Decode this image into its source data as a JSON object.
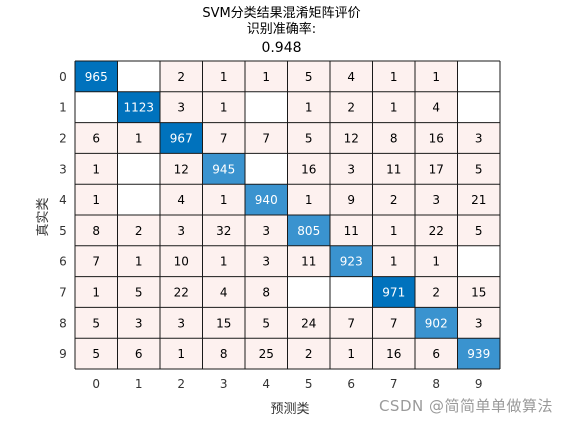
{
  "chart_data": {
    "type": "heatmap",
    "title_lines": [
      "SVM分类结果混淆矩阵评价",
      "识别准确率:",
      "0.948"
    ],
    "xlabel": "预测类",
    "ylabel": "真实类",
    "x_categories": [
      "0",
      "1",
      "2",
      "3",
      "4",
      "5",
      "6",
      "7",
      "8",
      "9"
    ],
    "y_categories": [
      "0",
      "1",
      "2",
      "3",
      "4",
      "5",
      "6",
      "7",
      "8",
      "9"
    ],
    "matrix": [
      [
        965,
        null,
        2,
        1,
        1,
        5,
        4,
        1,
        1,
        null
      ],
      [
        null,
        1123,
        3,
        1,
        null,
        1,
        2,
        1,
        4,
        null
      ],
      [
        6,
        1,
        967,
        7,
        7,
        5,
        12,
        8,
        16,
        3
      ],
      [
        1,
        null,
        12,
        945,
        null,
        16,
        3,
        11,
        17,
        5
      ],
      [
        1,
        null,
        4,
        1,
        940,
        1,
        9,
        2,
        3,
        21
      ],
      [
        8,
        2,
        3,
        32,
        3,
        805,
        11,
        1,
        22,
        5
      ],
      [
        7,
        1,
        10,
        1,
        3,
        11,
        923,
        1,
        1,
        null
      ],
      [
        1,
        5,
        22,
        4,
        8,
        null,
        null,
        971,
        2,
        15
      ],
      [
        5,
        3,
        3,
        15,
        5,
        24,
        7,
        7,
        902,
        3
      ],
      [
        5,
        6,
        1,
        8,
        25,
        2,
        1,
        16,
        6,
        939
      ]
    ],
    "colors": {
      "diagonal_dark": "#0072bd",
      "diagonal_light": "#3a93cf",
      "offdiag_fill": "#fdf1ef",
      "empty_fill": "#ffffff",
      "grid": "#1a1a1a",
      "highlight_text": "#ffffff",
      "normal_text": "#000000"
    }
  },
  "watermark": "CSDN @简简单单做算法"
}
